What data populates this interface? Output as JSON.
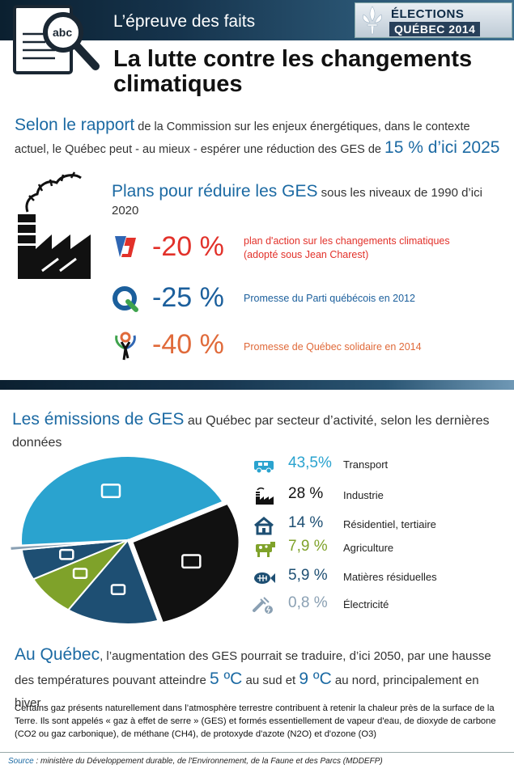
{
  "header": {
    "series_title": "L’épreuve des faits",
    "badge_line1": "ÉLECTIONS",
    "badge_line2": "QUÉBEC 2014",
    "doc_icon_text": "abc",
    "icon": "magnifier-document-icon"
  },
  "title": "La lutte contre les changements climatiques",
  "rapport": {
    "lead": "Selon le rapport",
    "text": " de la Commission sur les enjeux énergétiques, dans le contexte actuel, le Québec peut - au mieux - espérer une réduction des GES de ",
    "highlight": "15 % d’ici 2025"
  },
  "plans": {
    "lead": "Plans pour réduire les GES",
    "text": " sous les niveaux de 1990 d’ici 2020",
    "items": [
      {
        "pct": "-20 %",
        "desc_line1": "plan d'action sur les changements climatiques",
        "desc_line2": "(adopté sous Jean Charest)",
        "color": "#e2312a",
        "logo": "liberal-party-logo"
      },
      {
        "pct": "-25 %",
        "desc_line1": "Promesse du Parti québécois en 2012",
        "desc_line2": "",
        "color": "#1b5f9c",
        "logo": "parti-quebecois-logo"
      },
      {
        "pct": "-40 %",
        "desc_line1": "Promesse de Québec solidaire en 2014",
        "desc_line2": "",
        "color": "#e06a3a",
        "logo": "quebec-solidaire-logo"
      }
    ]
  },
  "emissions": {
    "lead": "Les émissions de GES",
    "text": " au Québec par secteur d’activité, selon les dernières données",
    "sectors": [
      {
        "value": "43,5%",
        "name": "Transport",
        "color": "#2aa3cf",
        "icon": "car-icon"
      },
      {
        "value": "28 %",
        "name": "Industrie",
        "color": "#111111",
        "icon": "factory-icon"
      },
      {
        "value": "14 %",
        "name": "Résidentiel, tertiaire",
        "color": "#1e4f73",
        "icon": "house-icon"
      },
      {
        "value": "7,9 %",
        "name": "Agriculture",
        "color": "#7fa22a",
        "icon": "cow-icon"
      },
      {
        "value": "5,9 %",
        "name": "Matières résiduelles",
        "color": "#1e4f73",
        "icon": "fish-bones-icon"
      },
      {
        "value": "0,8 %",
        "name": "Électricité",
        "color": "#8aa0b3",
        "icon": "electric-plug-icon"
      }
    ]
  },
  "auquebec": {
    "lead": "Au Québec",
    "text1": ", l’augmentation des GES pourrait se traduire, d’ici 2050, par une hausse des températures pouvant atteindre ",
    "temp_south": "5 ºC",
    "text2": " au sud et ",
    "temp_north": "9 ºC",
    "text3": " au nord, principalement en hiver"
  },
  "note": "Certains gaz présents naturellement dans l’atmosphère terrestre contribuent à retenir la chaleur près de la surface de la Terre. Ils sont appelés « gaz à effet de serre » (GES) et formés essentiellement de vapeur d'eau, de dioxyde de carbone (CO2 ou gaz carbonique), de méthane (CH4), de protoxyde d'azote (N2O) et d'ozone (O3)",
  "source": {
    "label": "Source",
    "text": " : ministère du Développement durable, de l'Environnement, de la Faune et des Parcs (MDDEFP)"
  },
  "chart_data": {
    "type": "pie",
    "categories": [
      "Transport",
      "Industrie",
      "Résidentiel, tertiaire",
      "Agriculture",
      "Matières résiduelles",
      "Électricité"
    ],
    "values": [
      43.5,
      28,
      14,
      7.9,
      5.9,
      0.8
    ],
    "colors": [
      "#2aa3cf",
      "#111111",
      "#1e4f73",
      "#7fa22a",
      "#1e4f73",
      "#8aa0b3"
    ]
  }
}
